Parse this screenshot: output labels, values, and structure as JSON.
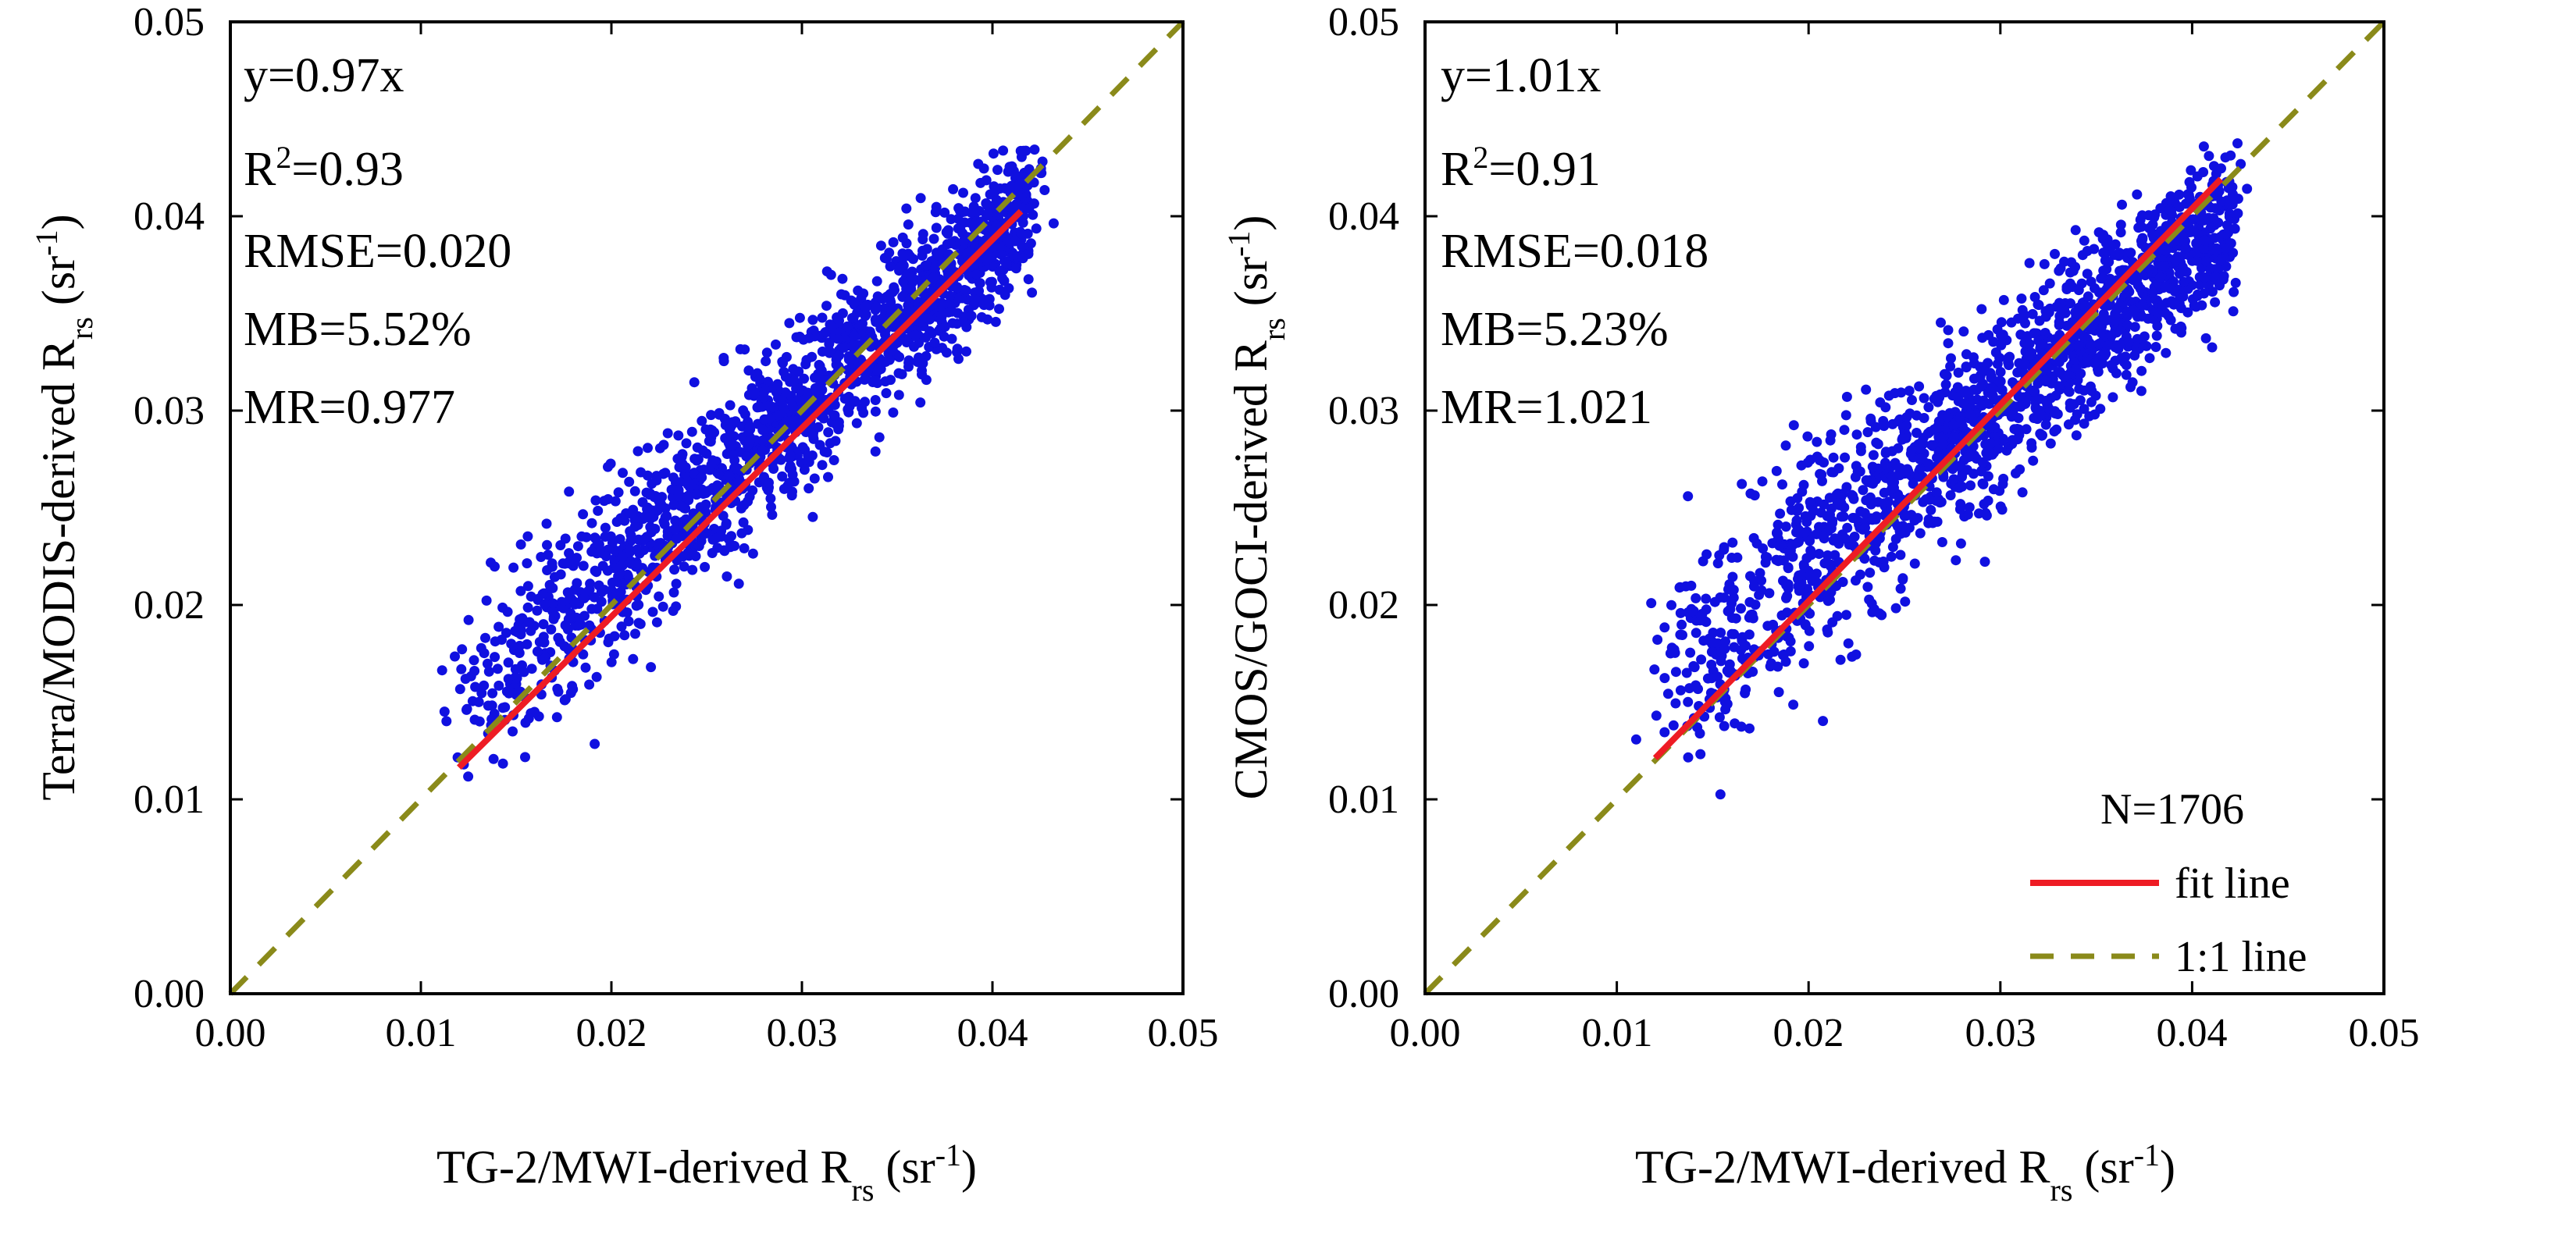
{
  "chart_data": [
    {
      "type": "scatter",
      "title": "",
      "xlabel": "TG-2/MWI-derived R",
      "xlabel_sub": "rs",
      "xlabel_unit": " (sr",
      "xlabel_sup": "-1",
      "xlabel_close": ")",
      "ylabel": "Terra/MODIS-derived R",
      "ylabel_sub": "rs",
      "ylabel_unit": " (sr",
      "ylabel_sup": "-1",
      "ylabel_close": ")",
      "xlim": [
        0,
        0.05
      ],
      "ylim": [
        0,
        0.05
      ],
      "ticks": [
        "0.00",
        "0.01",
        "0.02",
        "0.03",
        "0.04",
        "0.05"
      ],
      "stats": {
        "eq": "y=0.97x",
        "r2_prefix": "R",
        "r2_sup": "2",
        "r2_value": "=0.93",
        "rmse": "RMSE=0.020",
        "mb": "MB=5.52%",
        "mr": "MR=0.977"
      },
      "fit": {
        "slope": 0.97,
        "x_range": [
          0.012,
          0.0415
        ]
      },
      "scatter": {
        "n": 1706,
        "color": "#1010e0",
        "x_range": [
          0.012,
          0.042
        ],
        "offset_low": 0.003,
        "offset_high": -0.0015,
        "spread": 0.0022
      },
      "colors": {
        "points": "#1010e0",
        "fit": "#ee1c24",
        "identity": "#8a8a1a"
      }
    },
    {
      "type": "scatter",
      "title": "",
      "xlabel": "TG-2/MWI-derived R",
      "xlabel_sub": "rs",
      "xlabel_unit": " (sr",
      "xlabel_sup": "-1",
      "xlabel_close": ")",
      "ylabel": "CMOS/GOCI-derived R",
      "ylabel_sub": "rs",
      "ylabel_unit": " (sr",
      "ylabel_sup": "-1",
      "ylabel_close": ")",
      "xlim": [
        0,
        0.05
      ],
      "ylim": [
        0,
        0.05
      ],
      "ticks": [
        "0.00",
        "0.01",
        "0.02",
        "0.03",
        "0.04",
        "0.05"
      ],
      "stats": {
        "eq": "y=1.01x",
        "r2_prefix": "R",
        "r2_sup": "2",
        "r2_value": "=0.91",
        "rmse": "RMSE=0.018",
        "mb": "MB=5.23%",
        "mr": "MR=1.021"
      },
      "fit": {
        "slope": 1.01,
        "x_range": [
          0.012,
          0.0415
        ]
      },
      "scatter": {
        "n": 1706,
        "color": "#1010e0",
        "x_range": [
          0.012,
          0.042
        ],
        "offset_low": 0.004,
        "offset_high": -0.002,
        "spread": 0.0024
      },
      "legend": {
        "n_label": "N=1706",
        "fit_label": "fit  line",
        "identity_label": "1:1 line",
        "position": "bottom-right"
      },
      "colors": {
        "points": "#1010e0",
        "fit": "#ee1c24",
        "identity": "#8a8a1a"
      }
    }
  ]
}
